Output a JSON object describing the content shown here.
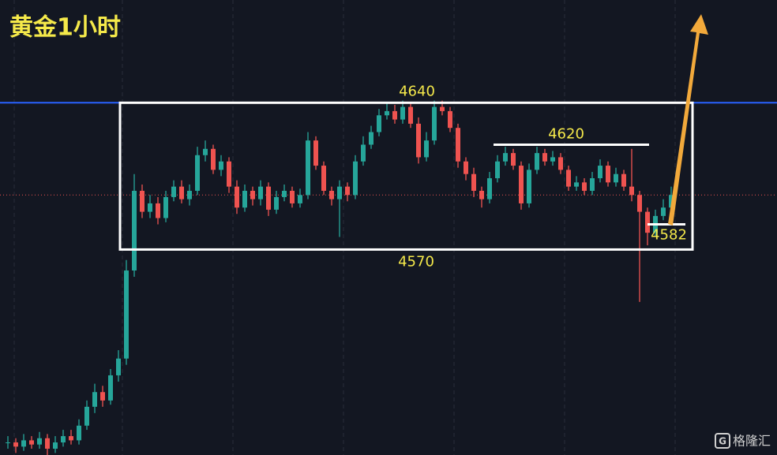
{
  "chart_data": {
    "type": "candlestick",
    "title": "黄金1小时",
    "watermark": "格隆汇",
    "ylim": [
      4472,
      4689
    ],
    "up_color": "#26a69a",
    "down_color": "#ef5350",
    "level_color": "#2962ff",
    "annotations": [
      4640,
      4620,
      4570,
      4582
    ],
    "open": [
      4478,
      4478,
      4476,
      4479,
      4477,
      4480,
      4475,
      4478,
      4481,
      4479,
      4486,
      4495,
      4502,
      4498,
      4510,
      4518,
      4560,
      4598,
      4588,
      4592,
      4585,
      4595,
      4600,
      4594,
      4598,
      4615,
      4618,
      4608,
      4612,
      4600,
      4590,
      4598,
      4594,
      4600,
      4589,
      4595,
      4598,
      4592,
      4596,
      4622,
      4610,
      4598,
      4594,
      4600,
      4596,
      4612,
      4620,
      4626,
      4634,
      4636,
      4632,
      4638,
      4630,
      4614,
      4622,
      4638,
      4636,
      4628,
      4612,
      4606,
      4598,
      4594,
      4604,
      4612,
      4616,
      4610,
      4592,
      4608,
      4616,
      4612,
      4614,
      4608,
      4600,
      4602,
      4598,
      4604,
      4610,
      4602,
      4606,
      4600,
      4596,
      4588,
      4578,
      4586,
      4590
    ],
    "high": [
      4481,
      4480,
      4482,
      4481,
      4483,
      4482,
      4481,
      4484,
      4484,
      4489,
      4498,
      4506,
      4505,
      4513,
      4522,
      4565,
      4606,
      4601,
      4596,
      4595,
      4598,
      4603,
      4603,
      4601,
      4619,
      4622,
      4620,
      4615,
      4614,
      4603,
      4601,
      4600,
      4603,
      4602,
      4598,
      4601,
      4600,
      4599,
      4626,
      4624,
      4612,
      4600,
      4603,
      4602,
      4615,
      4624,
      4629,
      4637,
      4640,
      4639,
      4641,
      4640,
      4633,
      4626,
      4641,
      4641,
      4638,
      4630,
      4614,
      4609,
      4600,
      4607,
      4615,
      4619,
      4618,
      4612,
      4611,
      4619,
      4618,
      4617,
      4616,
      4610,
      4605,
      4604,
      4607,
      4613,
      4612,
      4609,
      4608,
      4618,
      4598,
      4590,
      4589,
      4594,
      4600
    ],
    "low": [
      4475,
      4473,
      4474,
      4475,
      4475,
      4472,
      4473,
      4476,
      4477,
      4477,
      4484,
      4492,
      4495,
      4496,
      4507,
      4515,
      4557,
      4585,
      4585,
      4582,
      4583,
      4593,
      4592,
      4591,
      4596,
      4612,
      4606,
      4605,
      4597,
      4587,
      4588,
      4591,
      4591,
      4586,
      4587,
      4593,
      4590,
      4590,
      4594,
      4608,
      4596,
      4591,
      4576,
      4593,
      4594,
      4610,
      4618,
      4624,
      4632,
      4630,
      4630,
      4628,
      4611,
      4612,
      4620,
      4634,
      4626,
      4609,
      4603,
      4595,
      4590,
      4592,
      4602,
      4610,
      4608,
      4589,
      4590,
      4606,
      4610,
      4610,
      4606,
      4598,
      4598,
      4596,
      4596,
      4602,
      4600,
      4600,
      4598,
      4593,
      4545,
      4572,
      4576,
      4584,
      4586
    ],
    "close": [
      4478,
      4476,
      4479,
      4477,
      4480,
      4475,
      4478,
      4481,
      4479,
      4486,
      4495,
      4502,
      4498,
      4510,
      4518,
      4560,
      4598,
      4588,
      4592,
      4585,
      4595,
      4600,
      4594,
      4598,
      4615,
      4618,
      4608,
      4612,
      4600,
      4590,
      4598,
      4594,
      4600,
      4589,
      4595,
      4598,
      4592,
      4596,
      4622,
      4610,
      4598,
      4594,
      4600,
      4596,
      4612,
      4620,
      4626,
      4634,
      4636,
      4632,
      4638,
      4630,
      4614,
      4622,
      4638,
      4636,
      4628,
      4612,
      4606,
      4598,
      4594,
      4604,
      4612,
      4616,
      4610,
      4592,
      4608,
      4616,
      4612,
      4614,
      4608,
      4600,
      4602,
      4598,
      4604,
      4610,
      4602,
      4606,
      4600,
      4596,
      4588,
      4578,
      4586,
      4590,
      4596
    ]
  }
}
